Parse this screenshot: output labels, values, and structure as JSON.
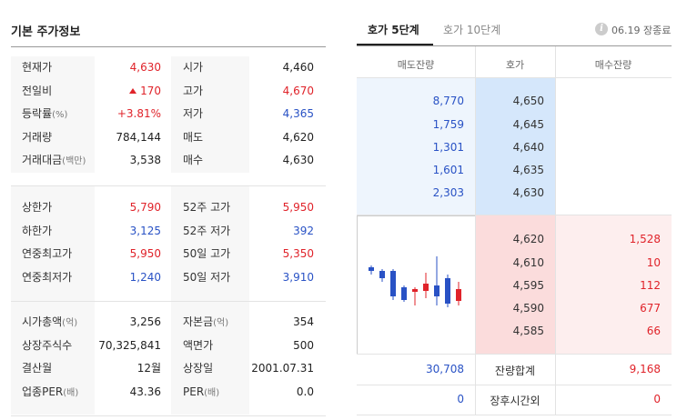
{
  "left": {
    "title": "기본 주가정보",
    "group1": [
      {
        "l1": "현재가",
        "l1sub": "",
        "v1": "4,630",
        "c1": "up",
        "l2": "시가",
        "l2sub": "",
        "v2": "4,460",
        "c2": "plain"
      },
      {
        "l1": "전일비",
        "l1sub": "",
        "v1": "170",
        "c1": "up",
        "arrow": true,
        "l2": "고가",
        "l2sub": "",
        "v2": "4,670",
        "c2": "up"
      },
      {
        "l1": "등락률",
        "l1sub": "(%)",
        "v1": "+3.81%",
        "c1": "up",
        "l2": "저가",
        "l2sub": "",
        "v2": "4,365",
        "c2": "down"
      },
      {
        "l1": "거래량",
        "l1sub": "",
        "v1": "784,144",
        "c1": "plain",
        "l2": "매도",
        "l2sub": "",
        "v2": "4,620",
        "c2": "plain"
      },
      {
        "l1": "거래대금",
        "l1sub": "(백만)",
        "v1": "3,538",
        "c1": "plain",
        "l2": "매수",
        "l2sub": "",
        "v2": "4,630",
        "c2": "plain"
      }
    ],
    "group2": [
      {
        "l1": "상한가",
        "l1sub": "",
        "v1": "5,790",
        "c1": "up",
        "l2": "52주 고가",
        "l2sub": "",
        "v2": "5,950",
        "c2": "up"
      },
      {
        "l1": "하한가",
        "l1sub": "",
        "v1": "3,125",
        "c1": "down",
        "l2": "52주 저가",
        "l2sub": "",
        "v2": "392",
        "c2": "down"
      },
      {
        "l1": "연중최고가",
        "l1sub": "",
        "v1": "5,950",
        "c1": "up",
        "l2": "50일 고가",
        "l2sub": "",
        "v2": "5,350",
        "c2": "up"
      },
      {
        "l1": "연중최저가",
        "l1sub": "",
        "v1": "1,240",
        "c1": "down",
        "l2": "50일 저가",
        "l2sub": "",
        "v2": "3,910",
        "c2": "down"
      }
    ],
    "group3": [
      {
        "l1": "시가총액",
        "l1sub": "(억)",
        "v1": "3,256",
        "c1": "plain",
        "l2": "자본금",
        "l2sub": "(억)",
        "v2": "354",
        "c2": "plain"
      },
      {
        "l1": "상장주식수",
        "l1sub": "",
        "v1": "70,325,841",
        "c1": "plain",
        "l2": "액면가",
        "l2sub": "",
        "v2": "500",
        "c2": "plain"
      },
      {
        "l1": "결산월",
        "l1sub": "",
        "v1": "12월",
        "c1": "plain",
        "l2": "상장일",
        "l2sub": "",
        "v2": "2001.07.31",
        "c2": "plain"
      },
      {
        "l1": "업종PER",
        "l1sub": "(배)",
        "v1": "43.36",
        "c1": "plain",
        "l2": "PER",
        "l2sub": "(배)",
        "v2": "0.0",
        "c2": "plain"
      }
    ]
  },
  "right": {
    "tabs": [
      "호가 5단계",
      "호가 10단계"
    ],
    "session": "06.19 장종료",
    "info_icon": "i",
    "headers": [
      "매도잔량",
      "호가",
      "매수잔량"
    ],
    "asks": [
      {
        "qty": "8,770",
        "price": "4,650"
      },
      {
        "qty": "1,759",
        "price": "4,645"
      },
      {
        "qty": "1,301",
        "price": "4,640"
      },
      {
        "qty": "1,601",
        "price": "4,635"
      },
      {
        "qty": "2,303",
        "price": "4,630"
      }
    ],
    "bids": [
      {
        "price": "4,620",
        "qty": "1,528"
      },
      {
        "price": "4,610",
        "qty": "10"
      },
      {
        "price": "4,595",
        "qty": "112"
      },
      {
        "price": "4,590",
        "qty": "677"
      },
      {
        "price": "4,585",
        "qty": "66"
      }
    ],
    "total": {
      "ask": "30,708",
      "label": "잔량합계",
      "bid": "9,168"
    },
    "after_hours": {
      "ask": "0",
      "label": "장후시간외",
      "bid": "0"
    },
    "colors": {
      "up": "#e0232a",
      "down": "#2952c5"
    }
  }
}
